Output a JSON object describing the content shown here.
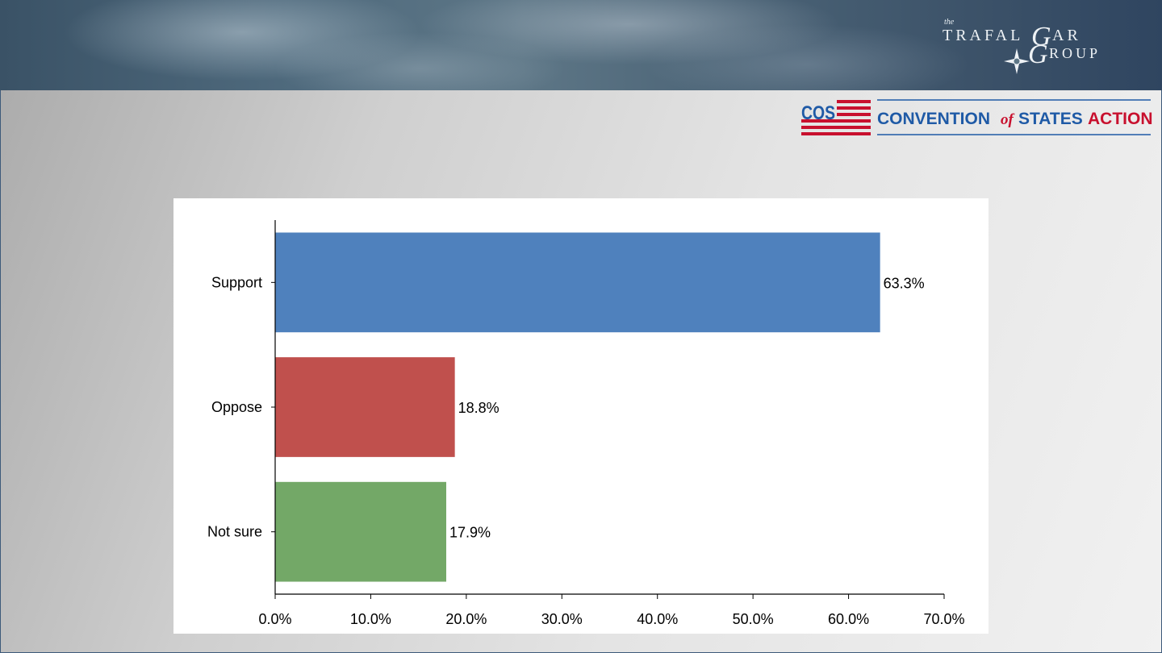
{
  "header": {
    "brand_small": "the",
    "brand_line1": "TRAFAL",
    "brand_line1_initial": "G",
    "brand_line1_tail": "AR",
    "brand_line2_initial": "G",
    "brand_line2_tail": "ROUP"
  },
  "sponsor": {
    "badge": "COS",
    "name_part1": "CONVENTION",
    "name_part2": "of",
    "name_part3": "STATES",
    "name_part4": "ACTION"
  },
  "colors": {
    "support": "#4f81bd",
    "oppose": "#c0504d",
    "not_sure": "#73a867",
    "cos_red": "#c8102e",
    "cos_blue": "#1f5aa6"
  },
  "chart_data": {
    "type": "bar",
    "orientation": "horizontal",
    "categories": [
      "Support",
      "Oppose",
      "Not sure"
    ],
    "values": [
      63.3,
      18.8,
      17.9
    ],
    "data_labels": [
      "63.3%",
      "18.8%",
      "17.9%"
    ],
    "xlim": [
      0,
      70
    ],
    "x_ticks": [
      0,
      10,
      20,
      30,
      40,
      50,
      60,
      70
    ],
    "x_tick_labels": [
      "0.0%",
      "10.0%",
      "20.0%",
      "30.0%",
      "40.0%",
      "50.0%",
      "60.0%",
      "70.0%"
    ],
    "grid": false,
    "legend": "none"
  }
}
